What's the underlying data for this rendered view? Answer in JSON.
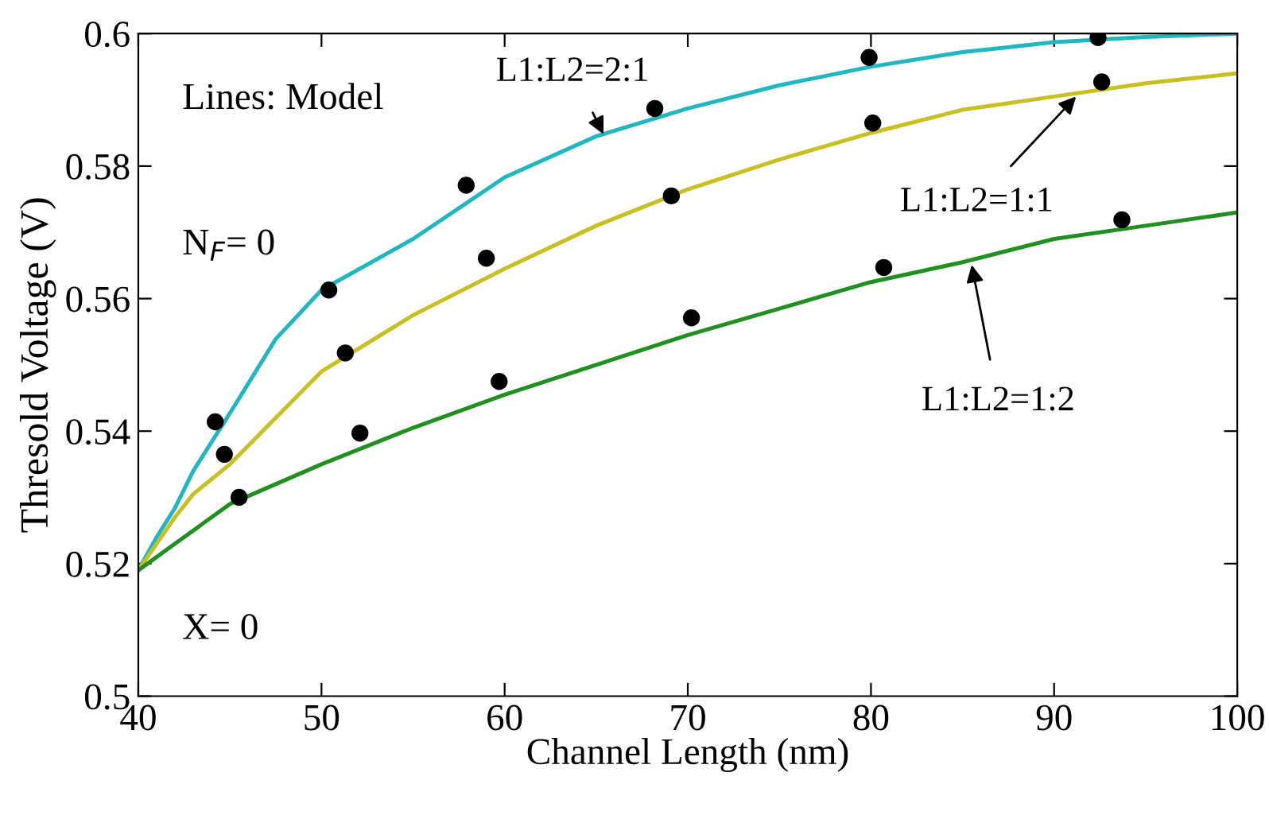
{
  "chart_data": {
    "type": "line",
    "xlabel": "Channel Length (nm)",
    "ylabel": "Thresold Voltage (V)",
    "xlim": [
      40,
      100
    ],
    "xticks": [
      40,
      50,
      60,
      70,
      80,
      90,
      100
    ],
    "ylim": [
      0.5,
      0.6
    ],
    "yticks": [
      0.5,
      0.52,
      0.54,
      0.56,
      0.58,
      0.6
    ],
    "grid": false,
    "legend": false,
    "series": [
      {
        "color": "#20b8c0",
        "x": [
          40,
          41,
          42,
          43,
          45,
          47.5,
          50,
          55,
          60,
          65,
          70,
          75,
          80,
          85,
          90,
          95,
          100
        ],
        "values": [
          0.519,
          0.524,
          0.5284,
          0.534,
          0.5427,
          0.5539,
          0.5613,
          0.569,
          0.5783,
          0.5845,
          0.5887,
          0.5922,
          0.595,
          0.5972,
          0.5987,
          0.5995,
          0.6
        ]
      },
      {
        "color": "#c8c020",
        "x": [
          40,
          41,
          42,
          43,
          45,
          50,
          55,
          60,
          65,
          70,
          75,
          80,
          85,
          90,
          95,
          100
        ],
        "values": [
          0.519,
          0.523,
          0.527,
          0.5305,
          0.535,
          0.549,
          0.5575,
          0.5645,
          0.571,
          0.5765,
          0.581,
          0.585,
          0.5885,
          0.5905,
          0.5925,
          0.594
        ]
      },
      {
        "color": "#209020",
        "x": [
          40,
          42,
          43,
          45,
          50,
          55,
          60,
          65,
          70,
          75,
          80,
          85,
          90,
          95,
          100
        ],
        "values": [
          0.519,
          0.523,
          0.525,
          0.529,
          0.535,
          0.5405,
          0.5455,
          0.55,
          0.5545,
          0.5585,
          0.5625,
          0.5655,
          0.569,
          0.571,
          0.573
        ]
      },
      {
        "type": "scatter",
        "color": "#000000",
        "marker": "circle",
        "x": [
          44.2,
          50.4,
          57.9,
          68.2,
          79.9,
          92.4
        ],
        "values": [
          0.5414,
          0.5613,
          0.5771,
          0.5887,
          0.5964,
          0.5994
        ]
      },
      {
        "type": "scatter",
        "color": "#000000",
        "marker": "circle",
        "x": [
          44.7,
          51.3,
          59.0,
          69.1,
          80.1,
          92.6
        ],
        "values": [
          0.5365,
          0.5518,
          0.5661,
          0.5755,
          0.5865,
          0.5927
        ]
      },
      {
        "type": "scatter",
        "color": "#000000",
        "marker": "circle",
        "x": [
          45.5,
          52.1,
          59.7,
          70.2,
          80.7,
          93.7
        ],
        "values": [
          0.53,
          0.5397,
          0.5475,
          0.5571,
          0.5647,
          0.5719
        ]
      }
    ],
    "annotations": [
      "Lines: Model",
      "N$_{F}$= 0",
      "X= 0",
      {
        "text": "L1:L2=2:1",
        "x": 65.4,
        "y": 0.5848
      },
      {
        "text": "L1:L2=1:1",
        "x": 91.2,
        "y": 0.5905
      },
      {
        "text": "L1:L2=1:2",
        "x": 85.5,
        "y": 0.5651
      }
    ]
  }
}
